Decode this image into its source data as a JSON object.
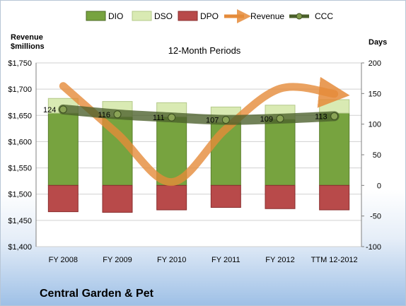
{
  "company": "Central Garden & Pet",
  "chart_data": {
    "type": "bar",
    "title": "12-Month Periods",
    "categories": [
      "FY 2008",
      "FY 2009",
      "FY 2010",
      "FY 2011",
      "FY 2012",
      "TTM 12-2012"
    ],
    "left_axis": {
      "label_line1": "Revenue",
      "label_line2": "$millions",
      "ticks": [
        1400,
        1450,
        1500,
        1550,
        1600,
        1650,
        1700,
        1750
      ],
      "tick_labels": [
        "$1,400",
        "$1,450",
        "$1,500",
        "$1,550",
        "$1,600",
        "$1,650",
        "$1,700",
        "$1,750"
      ],
      "range": [
        1400,
        1750
      ]
    },
    "right_axis": {
      "label": "Days",
      "ticks": [
        -100,
        -50,
        0,
        50,
        100,
        150,
        200
      ],
      "tick_labels": [
        "-100",
        "-50",
        "0",
        "50",
        "100",
        "150",
        "200"
      ],
      "range": [
        -100,
        200
      ]
    },
    "legend_position": "top",
    "series": [
      {
        "name": "DIO",
        "type": "stacked-bar",
        "axis": "right",
        "color": "#77a33f",
        "values": [
          118,
          112,
          112,
          103,
          108,
          118
        ]
      },
      {
        "name": "DSO",
        "type": "stacked-bar",
        "axis": "right",
        "color": "#d9eab3",
        "values": [
          24,
          25,
          23,
          25,
          23,
          22
        ]
      },
      {
        "name": "DPO",
        "type": "stacked-bar",
        "axis": "right",
        "color": "#b84a4a",
        "values": [
          -43,
          -44,
          -40,
          -36,
          -38,
          -40
        ]
      },
      {
        "name": "Revenue",
        "type": "line",
        "axis": "left",
        "color": "#e58b3a",
        "values": [
          1706,
          1615,
          1523,
          1624,
          1701,
          1691
        ]
      },
      {
        "name": "CCC",
        "type": "line",
        "axis": "right",
        "color": "#4a5f2a",
        "values": [
          124,
          116,
          111,
          107,
          109,
          113
        ],
        "data_labels": [
          "124",
          "116",
          "111",
          "107",
          "109",
          "113"
        ]
      }
    ]
  }
}
